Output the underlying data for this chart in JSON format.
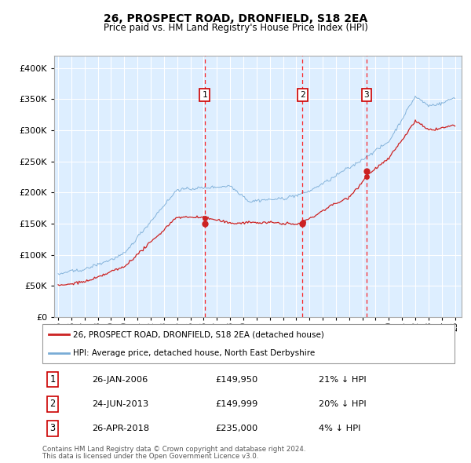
{
  "title": "26, PROSPECT ROAD, DRONFIELD, S18 2EA",
  "subtitle": "Price paid vs. HM Land Registry's House Price Index (HPI)",
  "legend_line1": "26, PROSPECT ROAD, DRONFIELD, S18 2EA (detached house)",
  "legend_line2": "HPI: Average price, detached house, North East Derbyshire",
  "footer1": "Contains HM Land Registry data © Crown copyright and database right 2024.",
  "footer2": "This data is licensed under the Open Government Licence v3.0.",
  "transactions": [
    {
      "num": 1,
      "date_str": "26-JAN-2006",
      "price": 149950,
      "pct": "21%",
      "direction": "↓",
      "year_x": 2006.07
    },
    {
      "num": 2,
      "date_str": "24-JUN-2013",
      "price": 149999,
      "pct": "20%",
      "direction": "↓",
      "year_x": 2013.48
    },
    {
      "num": 3,
      "date_str": "26-APR-2018",
      "price": 235000,
      "pct": "4%",
      "direction": "↓",
      "year_x": 2018.32
    }
  ],
  "hpi_color": "#7aacd6",
  "price_color": "#cc2222",
  "bg_color": "#ddeeff",
  "grid_color": "#ffffff",
  "ylim": [
    0,
    420000
  ],
  "yticks": [
    0,
    50000,
    100000,
    150000,
    200000,
    250000,
    300000,
    350000,
    400000
  ],
  "xmin": 1994.7,
  "xmax": 2025.5
}
